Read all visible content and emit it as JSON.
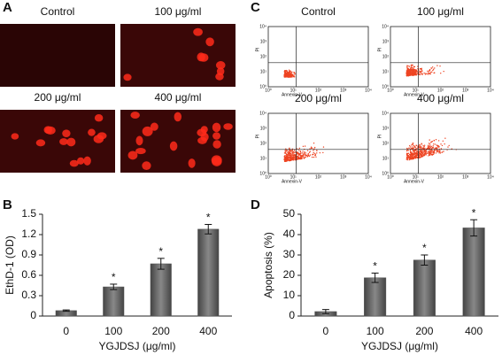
{
  "panel_labels": [
    "A",
    "B",
    "C",
    "D"
  ],
  "micrographs": {
    "labels": [
      "Control",
      "100 μg/ml",
      "200 μg/ml",
      "400 μg/ml"
    ]
  },
  "flow_plots": {
    "labels": [
      "Control",
      "100 μg/ml",
      "200 μg/ml",
      "400 μg/ml"
    ],
    "x_label": "Annexin-V",
    "y_label": "PI",
    "tick_labels": [
      "10⁰",
      "10¹",
      "10²",
      "10³",
      "10⁴"
    ]
  },
  "chart_data": [
    {
      "type": "bar",
      "y_label": "EthD-1 (OD)",
      "x_label": "YGJDSJ (μg/ml)",
      "categories": [
        "0",
        "100",
        "200",
        "400"
      ],
      "values": [
        0.08,
        0.43,
        0.77,
        1.28
      ],
      "errors": [
        0.01,
        0.04,
        0.08,
        0.07
      ],
      "annotations": [
        null,
        "*",
        "*",
        "*"
      ],
      "color": "#555555",
      "ylim": [
        0,
        1.5
      ],
      "yticks": [
        0,
        0.3,
        0.6,
        0.9,
        1.2,
        1.5
      ]
    },
    {
      "type": "bar",
      "y_label": "Apoptosis (%)",
      "x_label": "YGJDSJ (μg/ml)",
      "categories": [
        "0",
        "100",
        "200",
        "400"
      ],
      "values": [
        2.2,
        18.8,
        27.5,
        43.3
      ],
      "errors": [
        1,
        2.3,
        2.5,
        4
      ],
      "annotations": [
        null,
        "*",
        "*",
        "*"
      ],
      "color": "#555555",
      "ylim": [
        0,
        50
      ],
      "yticks": [
        0,
        10,
        20,
        30,
        40,
        50
      ]
    }
  ]
}
